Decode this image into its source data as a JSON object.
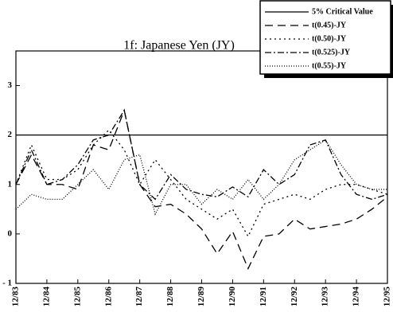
{
  "chart_data": {
    "type": "line",
    "title": "1f:  Japanese Yen (JY)",
    "x": [
      0,
      0.5,
      1,
      1.5,
      2,
      2.5,
      3,
      3.5,
      4,
      4.5,
      5,
      5.5,
      6,
      6.5,
      7,
      7.5,
      8,
      8.5,
      9,
      9.5,
      10,
      10.5,
      11,
      11.5,
      12
    ],
    "xlim": [
      0,
      12
    ],
    "xticks": [
      {
        "value": 0,
        "label": "12/83"
      },
      {
        "value": 1,
        "label": "12/84"
      },
      {
        "value": 2,
        "label": "12/85"
      },
      {
        "value": 3,
        "label": "12/86"
      },
      {
        "value": 4,
        "label": "12/87"
      },
      {
        "value": 5,
        "label": "12/88"
      },
      {
        "value": 6,
        "label": "12/89"
      },
      {
        "value": 7,
        "label": "12/90"
      },
      {
        "value": 8,
        "label": "12/91"
      },
      {
        "value": 9,
        "label": "12/92"
      },
      {
        "value": 10,
        "label": "12/93"
      },
      {
        "value": 11,
        "label": "12/94"
      },
      {
        "value": 12,
        "label": "12/95"
      }
    ],
    "ylim": [
      -1,
      3.7
    ],
    "yticks": [
      {
        "value": -1,
        "label": "- 1"
      },
      0,
      1,
      2,
      3
    ],
    "series": [
      {
        "name": "5% Critical Value",
        "color": "#000",
        "dash": "none",
        "values": [
          2,
          2,
          2,
          2,
          2,
          2,
          2,
          2,
          2,
          2,
          2,
          2,
          2,
          2,
          2,
          2,
          2,
          2,
          2,
          2,
          2,
          2,
          2,
          2,
          2
        ]
      },
      {
        "name": "t(0.45)-JY",
        "color": "#000",
        "dash": "10,6",
        "values": [
          1.0,
          1.6,
          1.0,
          1.0,
          0.9,
          1.8,
          1.7,
          2.5,
          1.0,
          0.55,
          0.6,
          0.4,
          0.1,
          -0.4,
          0.05,
          -0.7,
          -0.05,
          0.0,
          0.3,
          0.1,
          0.15,
          0.2,
          0.3,
          0.5,
          0.75
        ]
      },
      {
        "name": "t(0.50)-JY",
        "color": "#000",
        "dash": "2,4",
        "values": [
          1.0,
          1.8,
          1.1,
          1.1,
          1.3,
          1.8,
          2.1,
          1.7,
          1.0,
          1.5,
          1.1,
          0.7,
          0.5,
          0.3,
          0.5,
          -0.05,
          0.6,
          0.7,
          0.8,
          0.7,
          0.9,
          1.0,
          1.0,
          0.9,
          0.8
        ]
      },
      {
        "name": "t(0.525)-JY",
        "color": "#000",
        "dash": "8,3,2,3",
        "values": [
          1.0,
          1.7,
          1.0,
          1.1,
          1.4,
          1.9,
          2.0,
          2.5,
          1.0,
          0.7,
          1.2,
          0.9,
          0.8,
          0.75,
          0.95,
          0.75,
          1.3,
          1.0,
          1.2,
          1.8,
          1.9,
          1.2,
          0.8,
          0.7,
          0.8
        ]
      },
      {
        "name": "t(0.55)-JY",
        "color": "#000",
        "dash": "1,2",
        "values": [
          0.5,
          0.8,
          0.7,
          0.7,
          1.0,
          1.3,
          0.9,
          1.5,
          1.6,
          0.4,
          1.0,
          1.0,
          0.6,
          0.9,
          0.7,
          1.1,
          0.7,
          1.0,
          1.5,
          1.7,
          1.9,
          1.4,
          1.0,
          0.9,
          0.9
        ]
      }
    ]
  }
}
